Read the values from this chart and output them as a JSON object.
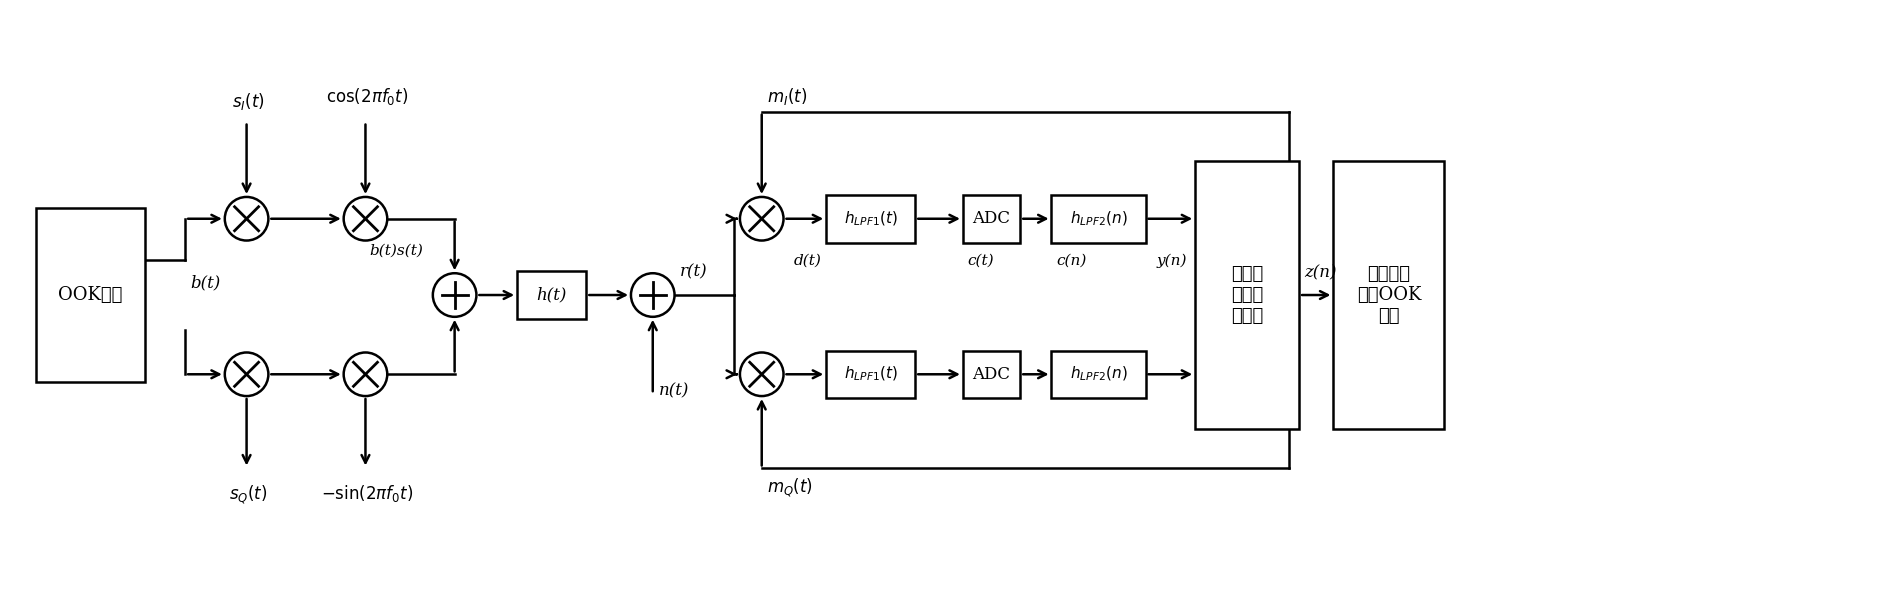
{
  "bg_color": "#ffffff",
  "line_color": "#000000",
  "figsize": [
    18.9,
    5.95
  ],
  "dpi": 100,
  "labels": {
    "ook": "OOK调制",
    "s_I": "s_I(t)",
    "s_Q": "s_Q(t)",
    "cos": "cos(2πf₀t)",
    "sin": "−sin(2πf₀t)",
    "bt": "b(t)",
    "bts": "b(t)s(t)",
    "ht": "h(t)",
    "rt": "r(t)",
    "nt": "n(t)",
    "dt": "d(t)",
    "ct": "c(t)",
    "cn": "c(n)",
    "yn": "y(n)",
    "zn": "z(n)",
    "mI": "m_I(t)",
    "mQ": "m_Q(t)",
    "lpf1": "h_LPF1(t)",
    "lpf2": "h_LPF2(n)",
    "adc": "ADC",
    "slide": "滑动相\n关和时\n间同步",
    "snr": "信噪比估\n计和OOK\n解调"
  }
}
